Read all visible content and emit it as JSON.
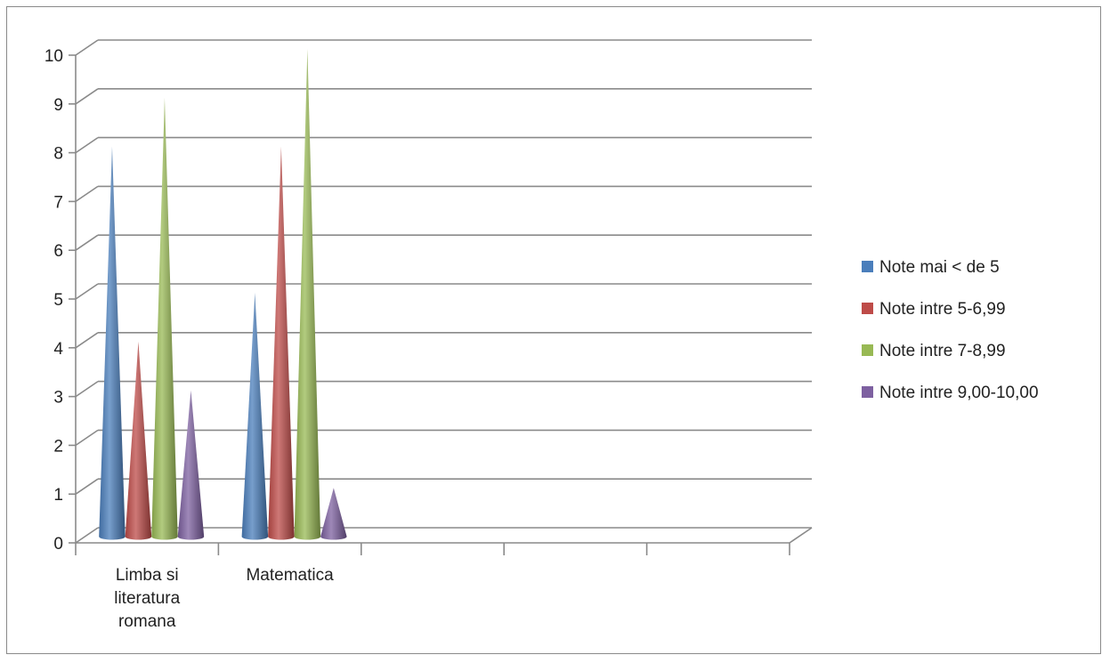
{
  "chart_data": {
    "type": "bar",
    "style": "3d-cone",
    "categories": [
      [
        "Limba si",
        "literatura",
        "romana"
      ],
      [
        "Matematica"
      ],
      [
        ""
      ],
      [
        ""
      ],
      [
        ""
      ]
    ],
    "series": [
      {
        "name": "Note mai < de 5",
        "color": "#4a7ebb",
        "values": [
          8,
          5,
          null,
          null,
          null
        ]
      },
      {
        "name": "Note intre 5-6,99",
        "color": "#be4b48",
        "values": [
          4,
          8,
          null,
          null,
          null
        ]
      },
      {
        "name": "Note intre 7-8,99",
        "color": "#98b954",
        "values": [
          9,
          10,
          null,
          null,
          null
        ]
      },
      {
        "name": "Note intre 9,00-10,00",
        "color": "#7d60a0",
        "values": [
          3,
          1,
          null,
          null,
          null
        ]
      }
    ],
    "yticks": [
      "0",
      "1",
      "2",
      "3",
      "4",
      "5",
      "6",
      "7",
      "8",
      "9",
      "10"
    ],
    "ylim": [
      0,
      10
    ],
    "grid": true,
    "legend_position": "right"
  }
}
